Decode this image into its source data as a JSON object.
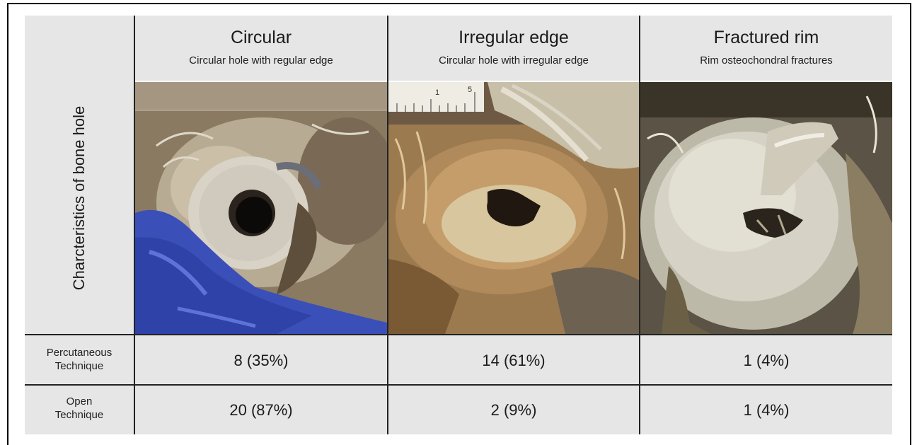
{
  "row_header": "Charcteristics of bone hole",
  "columns": [
    {
      "title": "Circular",
      "subtitle": "Circular hole with regular edge"
    },
    {
      "title": "Irregular edge",
      "subtitle": "Circular hole with irregular edge"
    },
    {
      "title": "Fractured rim",
      "subtitle": "Rim osteochondral fractures"
    }
  ],
  "rows": [
    {
      "label_line1": "Percutaneous",
      "label_line2": "Technique",
      "values": [
        "8 (35%)",
        "14 (61%)",
        "1 (4%)"
      ]
    },
    {
      "label_line1": "Open",
      "label_line2": "Technique",
      "values": [
        "20 (87%)",
        "2 (9%)",
        "1 (4%)"
      ]
    }
  ],
  "ruler_marks": [
    "1",
    "5"
  ]
}
